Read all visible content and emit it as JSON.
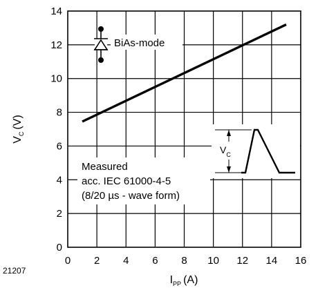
{
  "chart_data": {
    "type": "line",
    "xlabel_main": "I",
    "xlabel_sub": "PP",
    "xlabel_unit": "(A)",
    "ylabel_main": "V",
    "ylabel_sub": "C",
    "ylabel_unit": "(V)",
    "xlim": [
      0,
      16
    ],
    "ylim": [
      0,
      14
    ],
    "xticks": [
      "0",
      "2",
      "4",
      "6",
      "8",
      "10",
      "12",
      "14",
      "16"
    ],
    "yticks": [
      "0",
      "2",
      "4",
      "6",
      "8",
      "10",
      "12",
      "14"
    ],
    "grid": true,
    "series": [
      {
        "name": "BiAs-mode",
        "x": [
          1,
          15
        ],
        "y": [
          7.45,
          13.2
        ]
      }
    ],
    "legend_label": "BiAs-mode",
    "annotation_lines": [
      "Measured",
      "acc. IEC 61000-4-5",
      "(8/20 µs - wave form)"
    ],
    "inset_label_main": "V",
    "inset_label_sub": "C",
    "figure_id": "21207"
  }
}
